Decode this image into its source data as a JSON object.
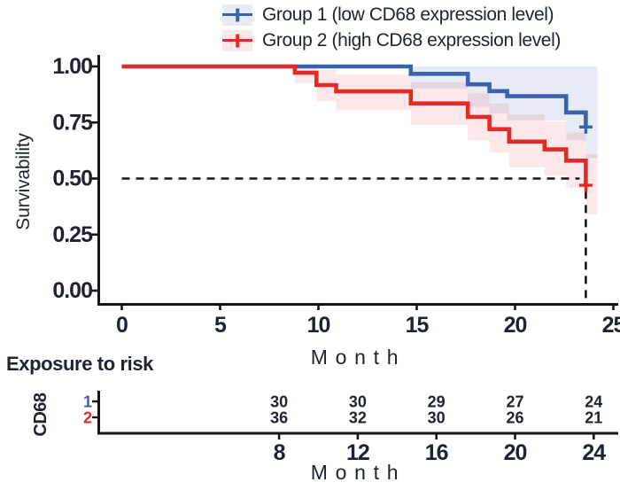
{
  "chart_data": {
    "type": "line",
    "subtype": "kaplan-meier-step",
    "title": "",
    "xlabel": "Month",
    "ylabel": "Survivability",
    "xlim": [
      0,
      25
    ],
    "ylim": [
      0.0,
      1.0
    ],
    "x_ticks": [
      0,
      5,
      10,
      15,
      20,
      25
    ],
    "y_ticks": [
      1.0,
      0.75,
      0.5,
      0.25,
      0.0
    ],
    "grid": false,
    "legend_position": "top",
    "colors": {
      "text": "#1D2330",
      "axis": "#151515",
      "dash": "#161616"
    },
    "series": [
      {
        "name": "Group 1 (low CD68 expression level)",
        "color": "#3A63AE",
        "band_color": "rgba(58,99,174,0.13)",
        "legend_bg": "#E7ECF6",
        "steps": [
          [
            0,
            1.0
          ],
          [
            14.7,
            1.0
          ],
          [
            14.7,
            0.967
          ],
          [
            17.6,
            0.967
          ],
          [
            17.6,
            0.92
          ],
          [
            18.7,
            0.92
          ],
          [
            18.7,
            0.89
          ],
          [
            19.6,
            0.89
          ],
          [
            19.6,
            0.867
          ],
          [
            22.6,
            0.867
          ],
          [
            22.6,
            0.795
          ],
          [
            23.6,
            0.795
          ],
          [
            23.6,
            0.73
          ]
        ],
        "censor_at": [
          23.6,
          0.73
        ],
        "ci_upper": [
          [
            14.7,
            1.0
          ],
          [
            24.2,
            1.0
          ]
        ],
        "ci_lower": [
          [
            14.7,
            0.9
          ],
          [
            17.6,
            0.9
          ],
          [
            17.6,
            0.82
          ],
          [
            18.7,
            0.82
          ],
          [
            18.7,
            0.79
          ],
          [
            19.6,
            0.79
          ],
          [
            19.6,
            0.76
          ],
          [
            22.6,
            0.76
          ],
          [
            22.6,
            0.67
          ],
          [
            23.6,
            0.67
          ],
          [
            23.6,
            0.59
          ],
          [
            24.2,
            0.59
          ]
        ]
      },
      {
        "name": "Group 2 (high CD68 expression level)",
        "color": "#E12A2A",
        "band_color": "rgba(225,42,42,0.11)",
        "legend_bg": "#FBE8E8",
        "steps": [
          [
            0,
            1.0
          ],
          [
            8.8,
            1.0
          ],
          [
            8.8,
            0.972
          ],
          [
            9.9,
            0.972
          ],
          [
            9.9,
            0.917
          ],
          [
            10.9,
            0.917
          ],
          [
            10.9,
            0.889
          ],
          [
            14.7,
            0.889
          ],
          [
            14.7,
            0.835
          ],
          [
            17.6,
            0.835
          ],
          [
            17.6,
            0.775
          ],
          [
            18.7,
            0.775
          ],
          [
            18.7,
            0.72
          ],
          [
            19.7,
            0.72
          ],
          [
            19.7,
            0.665
          ],
          [
            21.5,
            0.665
          ],
          [
            21.5,
            0.63
          ],
          [
            22.6,
            0.63
          ],
          [
            22.6,
            0.58
          ],
          [
            23.6,
            0.58
          ],
          [
            23.6,
            0.47
          ]
        ],
        "censor_at": [
          23.6,
          0.47
        ],
        "ci_upper": [
          [
            8.8,
            1.0
          ],
          [
            9.9,
            1.0
          ],
          [
            9.9,
            0.985
          ],
          [
            10.9,
            0.985
          ],
          [
            10.9,
            0.965
          ],
          [
            14.7,
            0.965
          ],
          [
            14.7,
            0.93
          ],
          [
            17.6,
            0.93
          ],
          [
            17.6,
            0.88
          ],
          [
            18.7,
            0.88
          ],
          [
            18.7,
            0.835
          ],
          [
            19.7,
            0.835
          ],
          [
            19.7,
            0.785
          ],
          [
            21.5,
            0.785
          ],
          [
            21.5,
            0.755
          ],
          [
            22.6,
            0.755
          ],
          [
            22.6,
            0.705
          ],
          [
            23.6,
            0.705
          ],
          [
            23.6,
            0.61
          ],
          [
            24.2,
            0.61
          ]
        ],
        "ci_lower": [
          [
            8.8,
            0.925
          ],
          [
            9.9,
            0.925
          ],
          [
            9.9,
            0.845
          ],
          [
            10.9,
            0.845
          ],
          [
            10.9,
            0.805
          ],
          [
            14.7,
            0.805
          ],
          [
            14.7,
            0.74
          ],
          [
            17.6,
            0.74
          ],
          [
            17.6,
            0.67
          ],
          [
            18.7,
            0.67
          ],
          [
            18.7,
            0.615
          ],
          [
            19.7,
            0.615
          ],
          [
            19.7,
            0.55
          ],
          [
            21.5,
            0.55
          ],
          [
            21.5,
            0.515
          ],
          [
            22.6,
            0.515
          ],
          [
            22.6,
            0.46
          ],
          [
            23.6,
            0.46
          ],
          [
            23.6,
            0.34
          ],
          [
            24.2,
            0.34
          ]
        ]
      }
    ],
    "median_line": {
      "y": 0.5,
      "x_at_cross": 23.6
    },
    "risk_table": {
      "title": "Exposure to risk",
      "group_axis_label": "CD68",
      "xlabel": "Month",
      "months": [
        8,
        12,
        16,
        20,
        24
      ],
      "rows": [
        {
          "label": "1",
          "color": "#3A63AE",
          "values": [
            30,
            30,
            29,
            27,
            24
          ]
        },
        {
          "label": "2",
          "color": "#E12A2A",
          "values": [
            36,
            32,
            30,
            26,
            21
          ]
        }
      ]
    }
  }
}
